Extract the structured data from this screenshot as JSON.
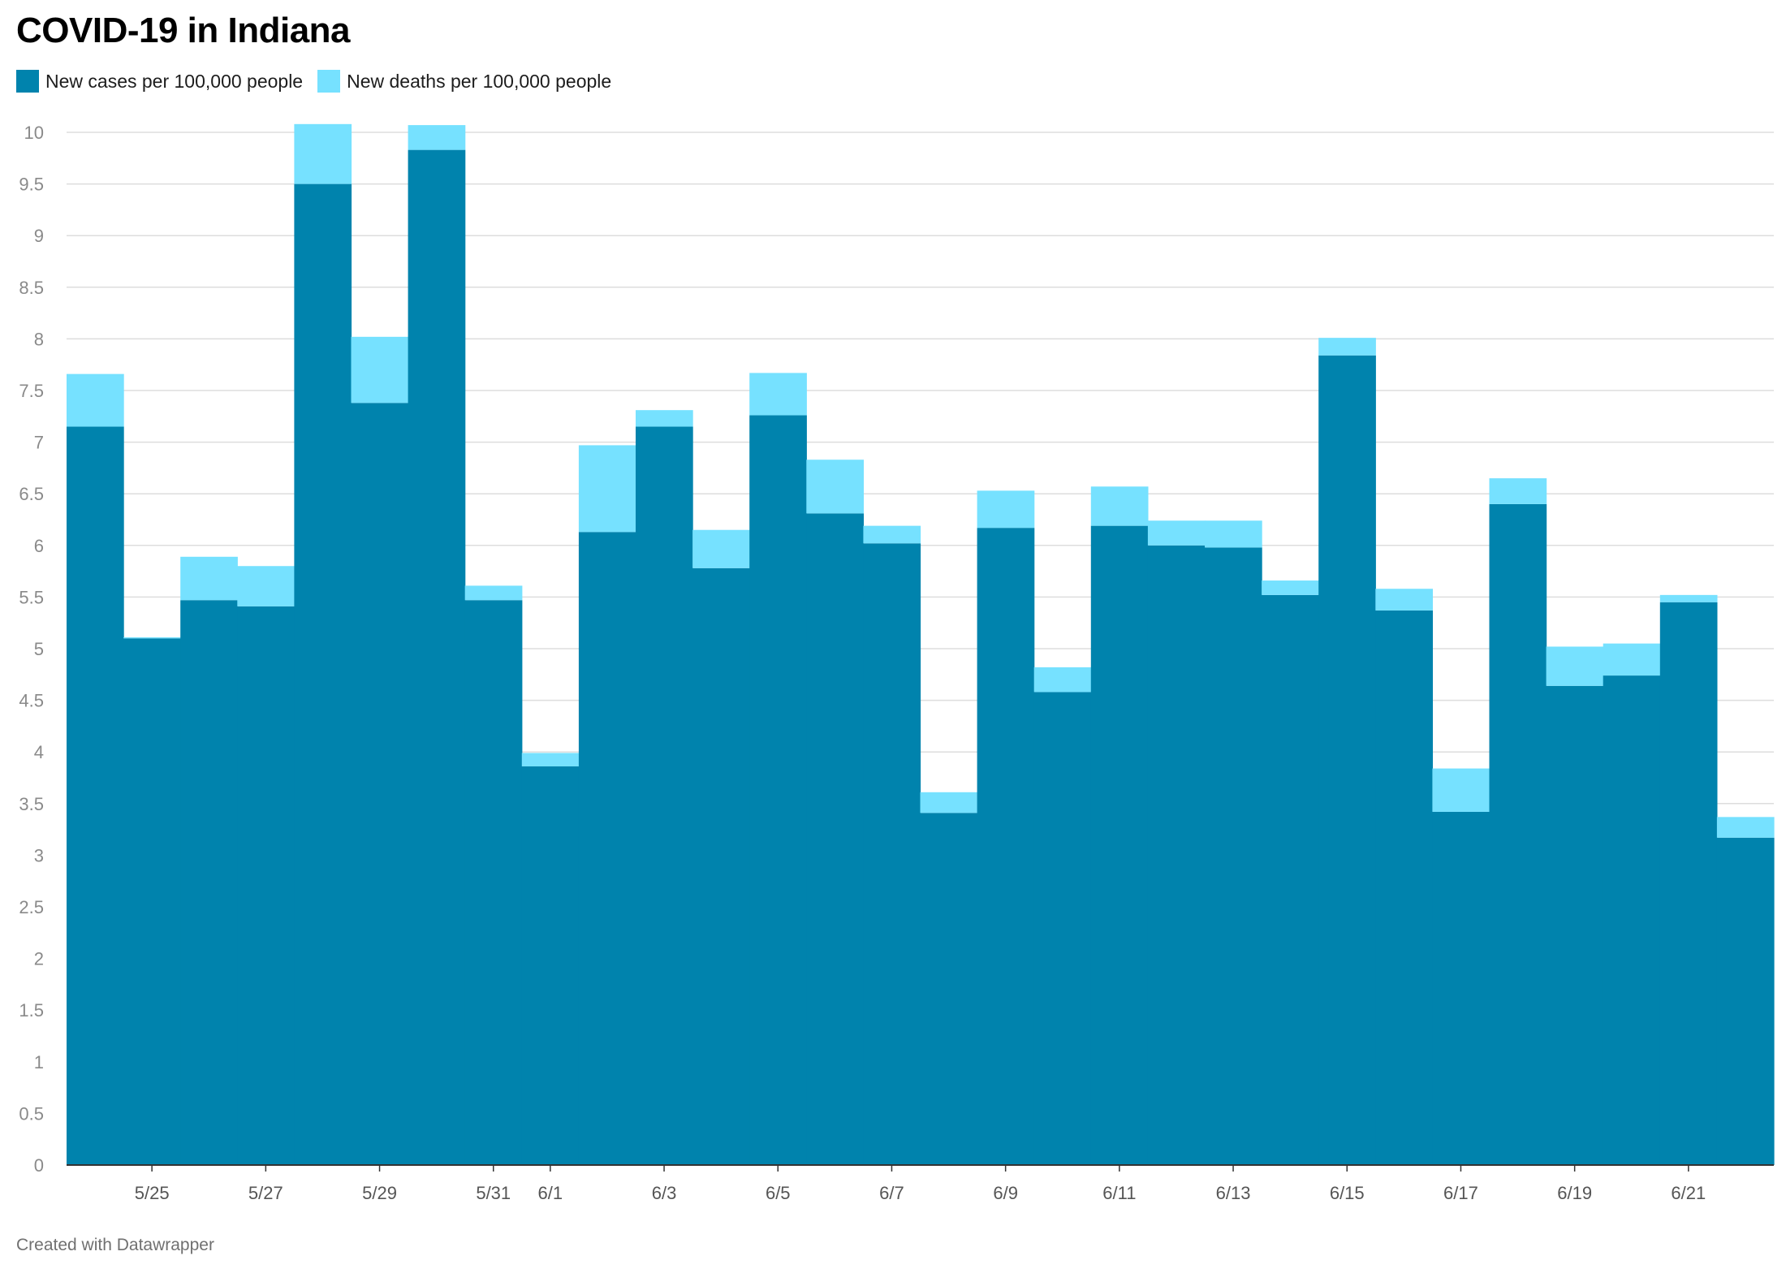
{
  "title": "COVID-19 in Indiana",
  "footer": "Created with Datawrapper",
  "colors": {
    "cases": "#0083ad",
    "deaths": "#76e1ff",
    "grid": "#dddddd",
    "axis_text": "#8a8a8a"
  },
  "legend": [
    {
      "label": "New cases per 100,000 people",
      "color": "#0083ad"
    },
    {
      "label": "New deaths per 100,000 people",
      "color": "#76e1ff"
    }
  ],
  "chart_data": {
    "type": "bar",
    "stacked": true,
    "categories": [
      "5/24",
      "5/25",
      "5/26",
      "5/27",
      "5/28",
      "5/29",
      "5/30",
      "5/31",
      "6/1",
      "6/2",
      "6/3",
      "6/4",
      "6/5",
      "6/6",
      "6/7",
      "6/8",
      "6/9",
      "6/10",
      "6/11",
      "6/12",
      "6/13",
      "6/14",
      "6/15",
      "6/16",
      "6/17",
      "6/18",
      "6/19",
      "6/20",
      "6/21",
      "6/22"
    ],
    "tick_labels": [
      "5/25",
      "5/27",
      "5/29",
      "5/31",
      "6/1",
      "6/3",
      "6/5",
      "6/7",
      "6/9",
      "6/11",
      "6/13",
      "6/15",
      "6/17",
      "6/19",
      "6/21"
    ],
    "series": [
      {
        "name": "New cases per 100,000 people",
        "values": [
          7.15,
          5.1,
          5.47,
          5.41,
          9.5,
          7.38,
          9.83,
          5.47,
          3.86,
          6.13,
          7.15,
          5.78,
          7.26,
          6.31,
          6.02,
          3.41,
          6.17,
          4.58,
          6.19,
          6.0,
          5.98,
          5.52,
          7.84,
          5.37,
          3.42,
          6.4,
          4.64,
          4.74,
          5.45,
          3.17
        ]
      },
      {
        "name": "New deaths per 100,000 people",
        "values": [
          0.51,
          0.01,
          0.42,
          0.39,
          0.58,
          0.64,
          0.24,
          0.14,
          0.13,
          0.84,
          0.16,
          0.37,
          0.41,
          0.52,
          0.17,
          0.2,
          0.36,
          0.24,
          0.38,
          0.24,
          0.26,
          0.14,
          0.17,
          0.21,
          0.42,
          0.25,
          0.38,
          0.31,
          0.07,
          0.2
        ]
      }
    ],
    "xlabel": "",
    "ylabel": "",
    "ylim": [
      0,
      10
    ],
    "yticks": [
      "0",
      "0.5",
      "1",
      "1.5",
      "2",
      "2.5",
      "3",
      "3.5",
      "4",
      "4.5",
      "5",
      "5.5",
      "6",
      "6.5",
      "7",
      "7.5",
      "8",
      "8.5",
      "9",
      "9.5",
      "10"
    ],
    "grid": true,
    "legend_position": "top-left"
  }
}
